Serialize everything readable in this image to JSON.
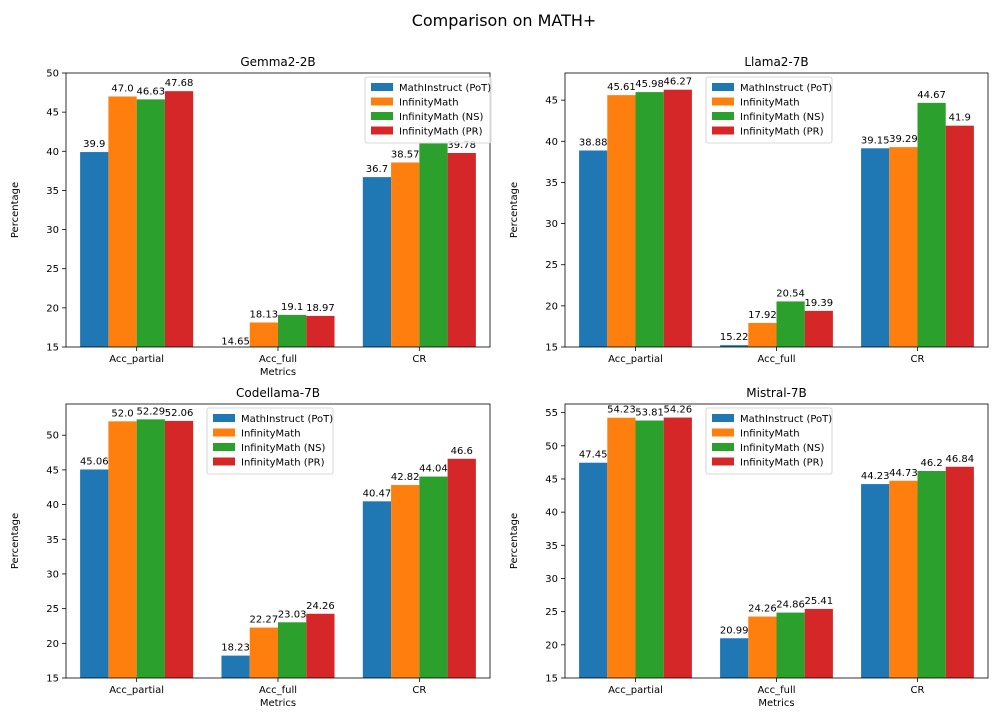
{
  "figure": {
    "suptitle": "Comparison on MATH+"
  },
  "colors": {
    "MathInstruct (PoT)": "#1f77b4",
    "InfinityMath": "#ff7f0e",
    "InfinityMath (NS)": "#2ca02c",
    "InfinityMath (PR)": "#d62728"
  },
  "chart_data": [
    {
      "type": "bar",
      "title": "Gemma2-2B",
      "xlabel": "Metrics",
      "ylabel": "Percentage",
      "ylim": [
        15,
        50
      ],
      "yticks": [
        "15",
        "20",
        "25",
        "30",
        "35",
        "40",
        "45",
        "50"
      ],
      "categories": [
        "Acc_partial",
        "Acc_full",
        "CR"
      ],
      "legend_position": "top-right",
      "series": [
        {
          "name": "MathInstruct (PoT)",
          "values": [
            39.9,
            14.65,
            36.7
          ],
          "labels": [
            "39.9",
            "14.65",
            "36.7"
          ]
        },
        {
          "name": "InfinityMath",
          "values": [
            47.0,
            18.13,
            38.57
          ],
          "labels": [
            "47.0",
            "18.13",
            "38.57"
          ]
        },
        {
          "name": "InfinityMath (NS)",
          "values": [
            46.63,
            19.1,
            41.0
          ],
          "labels": [
            "46.63",
            "19.1",
            ""
          ]
        },
        {
          "name": "InfinityMath (PR)",
          "values": [
            47.68,
            18.97,
            39.78
          ],
          "labels": [
            "47.68",
            "18.97",
            "39.78"
          ]
        }
      ]
    },
    {
      "type": "bar",
      "title": "Llama2-7B",
      "xlabel": "",
      "ylabel": "Percentage",
      "ylim": [
        15,
        48.3
      ],
      "yticks": [
        "15",
        "20",
        "25",
        "30",
        "35",
        "40",
        "45"
      ],
      "categories": [
        "Acc_partial",
        "Acc_full",
        "CR"
      ],
      "legend_position": "top-center",
      "series": [
        {
          "name": "MathInstruct (PoT)",
          "values": [
            38.88,
            15.22,
            39.15
          ],
          "labels": [
            "38.88",
            "15.22",
            "39.15"
          ]
        },
        {
          "name": "InfinityMath",
          "values": [
            45.61,
            17.92,
            39.29
          ],
          "labels": [
            "45.61",
            "17.92",
            "39.29"
          ]
        },
        {
          "name": "InfinityMath (NS)",
          "values": [
            45.98,
            20.54,
            44.67
          ],
          "labels": [
            "45.98",
            "20.54",
            "44.67"
          ]
        },
        {
          "name": "InfinityMath (PR)",
          "values": [
            46.27,
            19.39,
            41.9
          ],
          "labels": [
            "46.27",
            "19.39",
            "41.9"
          ]
        }
      ]
    },
    {
      "type": "bar",
      "title": "Codellama-7B",
      "xlabel": "Metrics",
      "ylabel": "Percentage",
      "ylim": [
        15,
        54.5
      ],
      "yticks": [
        "15",
        "20",
        "25",
        "30",
        "35",
        "40",
        "45",
        "50"
      ],
      "categories": [
        "Acc_partial",
        "Acc_full",
        "CR"
      ],
      "legend_position": "top-center",
      "series": [
        {
          "name": "MathInstruct (PoT)",
          "values": [
            45.06,
            18.23,
            40.47
          ],
          "labels": [
            "45.06",
            "18.23",
            "40.47"
          ]
        },
        {
          "name": "InfinityMath",
          "values": [
            52.0,
            22.27,
            42.82
          ],
          "labels": [
            "52.0",
            "22.27",
            "42.82"
          ]
        },
        {
          "name": "InfinityMath (NS)",
          "values": [
            52.29,
            23.03,
            44.04
          ],
          "labels": [
            "52.29",
            "23.03",
            "44.04"
          ]
        },
        {
          "name": "InfinityMath (PR)",
          "values": [
            52.06,
            24.26,
            46.6
          ],
          "labels": [
            "52.06",
            "24.26",
            "46.6"
          ]
        }
      ]
    },
    {
      "type": "bar",
      "title": "Mistral-7B",
      "xlabel": "Metrics",
      "ylabel": "Percentage",
      "ylim": [
        15,
        56.3
      ],
      "yticks": [
        "15",
        "20",
        "25",
        "30",
        "35",
        "40",
        "45",
        "50",
        "55"
      ],
      "categories": [
        "Acc_partial",
        "Acc_full",
        "CR"
      ],
      "legend_position": "top-center",
      "series": [
        {
          "name": "MathInstruct (PoT)",
          "values": [
            47.45,
            20.99,
            44.23
          ],
          "labels": [
            "47.45",
            "20.99",
            "44.23"
          ]
        },
        {
          "name": "InfinityMath",
          "values": [
            54.23,
            24.26,
            44.73
          ],
          "labels": [
            "54.23",
            "24.26",
            "44.73"
          ]
        },
        {
          "name": "InfinityMath (NS)",
          "values": [
            53.81,
            24.86,
            46.2
          ],
          "labels": [
            "53.81",
            "24.86",
            "46.2"
          ]
        },
        {
          "name": "InfinityMath (PR)",
          "values": [
            54.26,
            25.41,
            46.84
          ],
          "labels": [
            "54.26",
            "25.41",
            "46.84"
          ]
        }
      ]
    }
  ]
}
